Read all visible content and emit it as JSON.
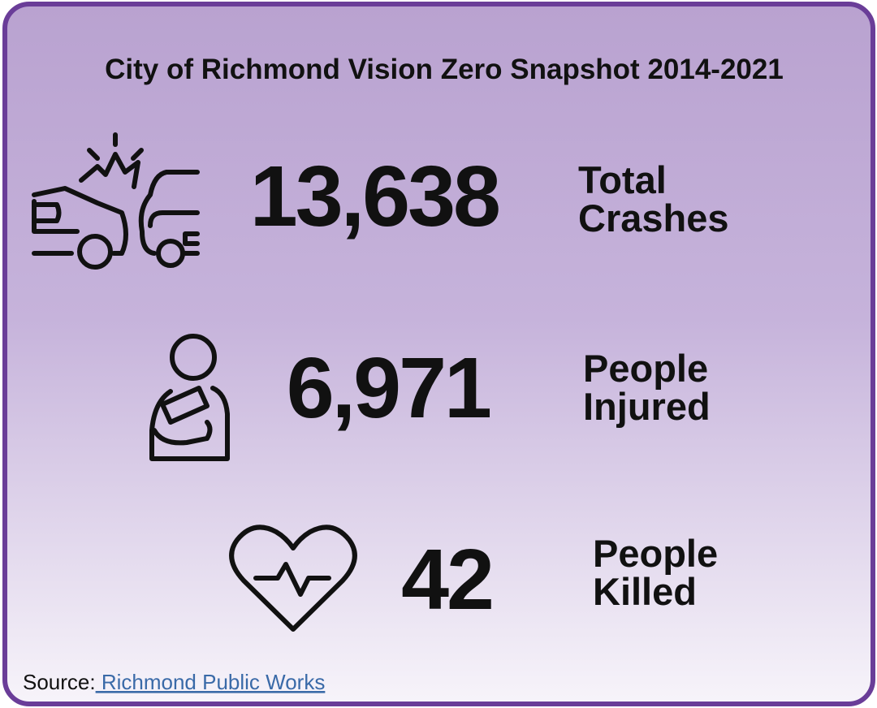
{
  "title": "City of Richmond Vision Zero Snapshot 2014-2021",
  "stats": [
    {
      "value": "13,638",
      "label": [
        "Total",
        "Crashes"
      ]
    },
    {
      "value": "6,971",
      "label": [
        "People",
        "Injured"
      ]
    },
    {
      "value": "42",
      "label": [
        "People",
        "Killed"
      ]
    }
  ],
  "source": {
    "prefix": "Source:",
    "link": " Richmond Public Works"
  }
}
